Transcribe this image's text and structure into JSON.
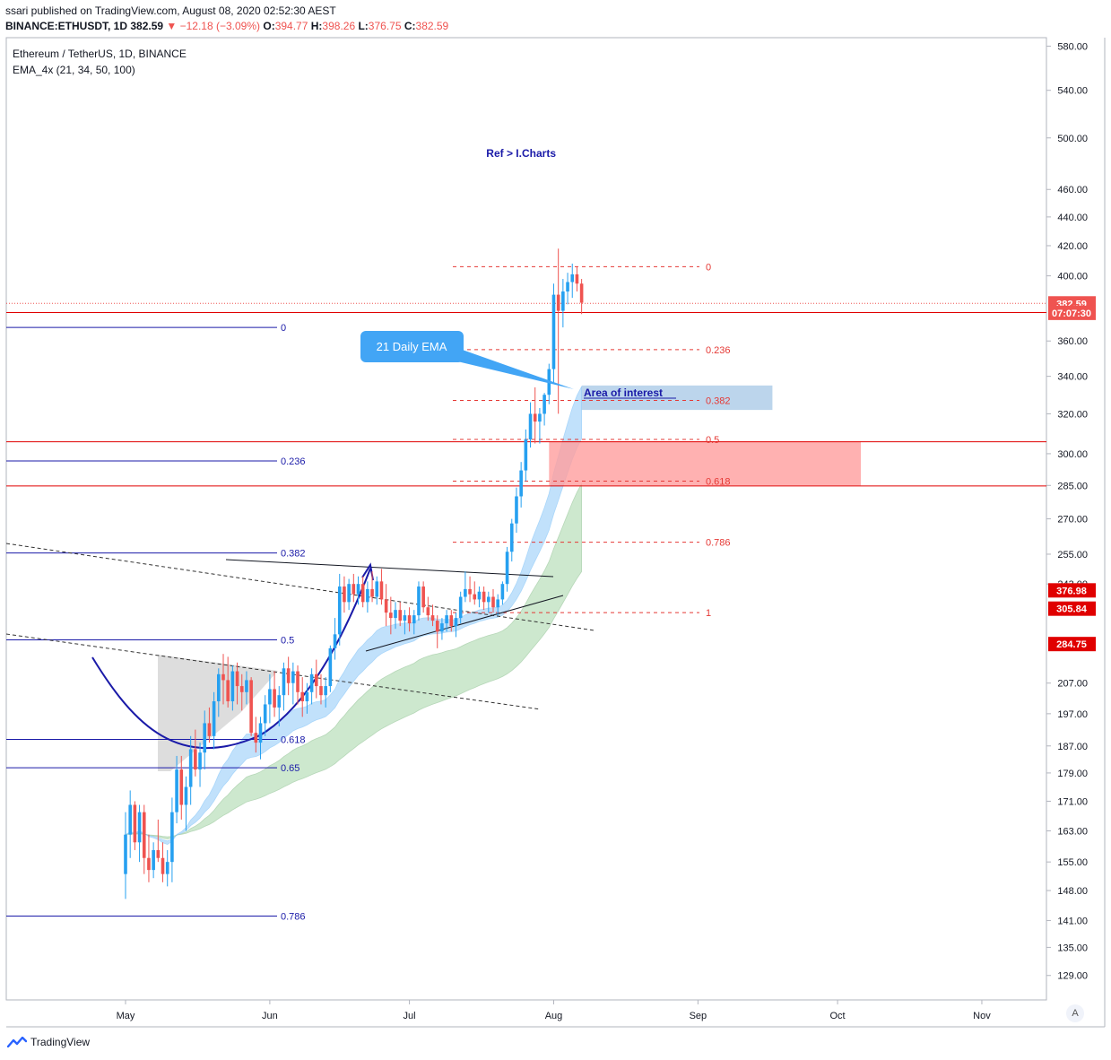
{
  "header": {
    "published": "ssari published on TradingView.com, August 08, 2020 02:52:30 AEST",
    "symbol": "BINANCE:ETHUSDT, 1D",
    "last": "382.59",
    "change": "▼ −12.18 (−3.09%)",
    "o_label": "O:",
    "o": "394.77",
    "h_label": "H:",
    "h": "398.26",
    "l_label": "L:",
    "l": "376.75",
    "c_label": "C:",
    "c": "382.59"
  },
  "legend": {
    "title": "Ethereum / TetherUS, 1D, BINANCE",
    "indicator": "EMA_4x (21, 34, 50, 100)"
  },
  "footer": {
    "brand": "TradingView"
  },
  "auto_button": "A",
  "colors": {
    "up": "#26a0f0",
    "down": "#ef5350",
    "fib_red": "#e53935",
    "fib_blue": "#1a1aa8",
    "ema_fast": "#90caf9",
    "ema_slow": "#a5d6a7",
    "area_interest": "#90b9e0",
    "zone_red": "#ff9e9e"
  },
  "chart_data": {
    "type": "candlestick",
    "scale": "log",
    "ylim": [
      124,
      588
    ],
    "y_ticks": [
      580,
      540,
      500,
      460,
      440,
      420,
      400,
      360,
      340,
      320,
      300,
      285,
      270,
      255,
      243,
      207,
      197,
      187,
      179,
      171,
      163,
      155,
      148,
      141,
      135,
      129
    ],
    "x_ticks": [
      {
        "label": "May",
        "date": "2020-05-01"
      },
      {
        "label": "Jun",
        "date": "2020-06-01"
      },
      {
        "label": "Jul",
        "date": "2020-07-01"
      },
      {
        "label": "Aug",
        "date": "2020-08-01"
      },
      {
        "label": "Sep",
        "date": "2020-09-01"
      },
      {
        "label": "Oct",
        "date": "2020-10-01"
      },
      {
        "label": "Nov",
        "date": "2020-11-01"
      }
    ],
    "price_labels": [
      {
        "text": "382.59",
        "price": 382.59,
        "color": "#ef5350"
      },
      {
        "text": "07:07:30",
        "price": 376.75,
        "color": "#ef5350"
      },
      {
        "text": "376.98",
        "price": 240.5,
        "color": "#e00000"
      },
      {
        "text": "305.84",
        "price": 233.5,
        "color": "#e00000"
      },
      {
        "text": "284.75",
        "price": 220.5,
        "color": "#e00000"
      }
    ],
    "horizontal_lines": [
      {
        "price": 376.98,
        "color": "#e00000"
      },
      {
        "price": 305.84,
        "color": "#e00000"
      },
      {
        "price": 284.75,
        "color": "#e00000"
      }
    ],
    "fib_retracement_red": [
      {
        "level": "0",
        "price": 406
      },
      {
        "level": "0.236",
        "price": 355
      },
      {
        "level": "0.382",
        "price": 327
      },
      {
        "level": "0.5",
        "price": 307
      },
      {
        "level": "0.618",
        "price": 287
      },
      {
        "level": "0.786",
        "price": 260
      },
      {
        "level": "1",
        "price": 232
      }
    ],
    "fib_retracement_blue": [
      {
        "level": "0",
        "price": 368
      },
      {
        "level": "0.236",
        "price": 296.5
      },
      {
        "level": "0.382",
        "price": 255.5
      },
      {
        "level": "0.5",
        "price": 222
      },
      {
        "level": "0.618",
        "price": 189
      },
      {
        "level": "0.65",
        "price": 180.5
      },
      {
        "level": "0.786",
        "price": 142
      }
    ],
    "annotations": [
      {
        "text": "Ref > I.Charts",
        "date": "2020-07-25",
        "price": 485
      },
      {
        "text": "21 Daily EMA",
        "date": "2020-06-25",
        "price": 364
      },
      {
        "text": "Area of interest",
        "date": "2020-08-08",
        "price": 332
      }
    ],
    "zones": [
      {
        "name": "area-of-interest",
        "from_date": "2020-08-07",
        "to_date": "2020-09-17",
        "low": 322,
        "high": 335
      },
      {
        "name": "red-zone",
        "from_date": "2020-07-31",
        "to_date": "2020-10-06",
        "low": 285,
        "high": 306
      }
    ],
    "candles": [
      [
        152,
        168,
        146,
        162
      ],
      [
        162,
        174,
        156,
        170
      ],
      [
        170,
        171,
        158,
        160
      ],
      [
        160,
        170,
        155,
        168
      ],
      [
        168,
        170,
        152,
        156
      ],
      [
        156,
        162,
        150,
        153
      ],
      [
        153,
        160,
        151,
        158
      ],
      [
        158,
        166,
        155,
        156
      ],
      [
        156,
        160,
        150,
        152
      ],
      [
        152,
        158,
        149,
        155
      ],
      [
        155,
        172,
        150,
        168
      ],
      [
        168,
        184,
        165,
        180
      ],
      [
        180,
        184,
        166,
        170
      ],
      [
        170,
        178,
        163,
        175
      ],
      [
        175,
        190,
        170,
        186
      ],
      [
        186,
        192,
        178,
        180
      ],
      [
        180,
        188,
        175,
        185
      ],
      [
        185,
        198,
        180,
        194
      ],
      [
        194,
        199,
        188,
        190
      ],
      [
        190,
        204,
        186,
        201
      ],
      [
        201,
        212,
        196,
        210
      ],
      [
        210,
        217,
        200,
        208
      ],
      [
        208,
        216,
        199,
        201
      ],
      [
        201,
        213,
        198,
        211
      ],
      [
        211,
        214,
        200,
        206
      ],
      [
        206,
        210,
        198,
        204
      ],
      [
        204,
        211,
        200,
        208
      ],
      [
        208,
        209,
        190,
        191
      ],
      [
        191,
        196,
        185,
        188
      ],
      [
        188,
        196,
        183,
        194
      ],
      [
        194,
        203,
        190,
        200
      ],
      [
        200,
        210,
        194,
        205
      ],
      [
        205,
        211,
        196,
        199
      ],
      [
        199,
        206,
        193,
        203
      ],
      [
        203,
        214,
        198,
        212
      ],
      [
        212,
        216,
        203,
        207
      ],
      [
        207,
        214,
        200,
        211
      ],
      [
        211,
        213,
        200,
        204
      ],
      [
        204,
        209,
        196,
        201
      ],
      [
        201,
        207,
        197,
        204
      ],
      [
        204,
        212,
        200,
        210
      ],
      [
        210,
        215,
        202,
        206
      ],
      [
        206,
        210,
        200,
        203
      ],
      [
        203,
        209,
        199,
        206
      ],
      [
        206,
        220,
        204,
        219
      ],
      [
        219,
        230,
        215,
        224
      ],
      [
        224,
        247,
        220,
        242
      ],
      [
        242,
        246,
        232,
        236
      ],
      [
        236,
        245,
        233,
        243
      ],
      [
        243,
        247,
        236,
        239
      ],
      [
        239,
        246,
        235,
        243
      ],
      [
        243,
        246,
        234,
        236
      ],
      [
        236,
        244,
        232,
        241
      ],
      [
        241,
        248,
        236,
        238
      ],
      [
        238,
        246,
        235,
        244
      ],
      [
        244,
        249,
        235,
        237
      ],
      [
        237,
        243,
        227,
        232
      ],
      [
        232,
        238,
        224,
        230
      ],
      [
        230,
        236,
        226,
        233
      ],
      [
        233,
        236,
        227,
        229
      ],
      [
        229,
        233,
        224,
        231
      ],
      [
        231,
        234,
        225,
        228
      ],
      [
        228,
        233,
        224,
        231
      ],
      [
        231,
        244,
        229,
        242
      ],
      [
        242,
        244,
        232,
        234
      ],
      [
        234,
        238,
        229,
        231
      ],
      [
        231,
        235,
        227,
        229
      ],
      [
        229,
        231,
        219,
        225
      ],
      [
        225,
        230,
        222,
        228
      ],
      [
        228,
        233,
        225,
        231
      ],
      [
        231,
        233,
        225,
        227
      ],
      [
        227,
        232,
        223,
        230
      ],
      [
        230,
        240,
        228,
        238
      ],
      [
        238,
        248,
        236,
        241
      ],
      [
        241,
        246,
        236,
        239
      ],
      [
        239,
        244,
        235,
        237
      ],
      [
        237,
        242,
        234,
        240
      ],
      [
        240,
        242,
        233,
        236
      ],
      [
        236,
        240,
        232,
        238
      ],
      [
        238,
        241,
        232,
        234
      ],
      [
        234,
        239,
        231,
        237
      ],
      [
        237,
        244,
        235,
        243
      ],
      [
        243,
        258,
        240,
        256
      ],
      [
        256,
        270,
        252,
        268
      ],
      [
        268,
        284,
        264,
        280
      ],
      [
        280,
        296,
        275,
        292
      ],
      [
        292,
        312,
        287,
        307
      ],
      [
        307,
        326,
        303,
        320
      ],
      [
        320,
        334,
        305,
        316
      ],
      [
        316,
        323,
        305,
        320
      ],
      [
        320,
        331,
        314,
        330
      ],
      [
        330,
        347,
        325,
        344
      ],
      [
        344,
        395,
        336,
        388
      ],
      [
        388,
        418,
        320,
        378
      ],
      [
        378,
        398,
        368,
        390
      ],
      [
        390,
        402,
        382,
        396
      ],
      [
        396,
        408,
        386,
        401
      ],
      [
        401,
        406,
        390,
        395
      ],
      [
        395,
        398,
        376,
        383
      ]
    ]
  }
}
